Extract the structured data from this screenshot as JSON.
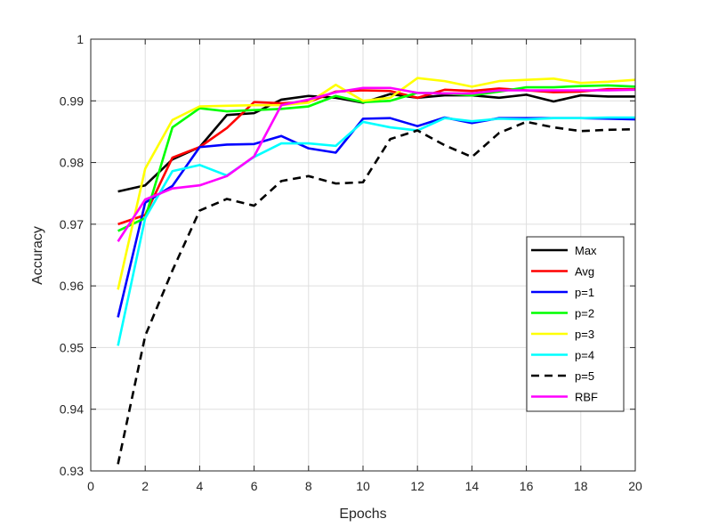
{
  "chart_data": {
    "type": "line",
    "title": "",
    "xlabel": "Epochs",
    "ylabel": "Accuracy",
    "xlim": [
      0,
      20
    ],
    "ylim": [
      0.93,
      1.0
    ],
    "xticks": [
      0,
      2,
      4,
      6,
      8,
      10,
      12,
      14,
      16,
      18,
      20
    ],
    "xtick_labels": [
      "0",
      "2",
      "4",
      "6",
      "8",
      "10",
      "12",
      "14",
      "16",
      "18",
      "20"
    ],
    "yticks": [
      0.93,
      0.94,
      0.95,
      0.96,
      0.97,
      0.98,
      0.99,
      1.0
    ],
    "ytick_labels": [
      "0.93",
      "0.94",
      "0.95",
      "0.96",
      "0.97",
      "0.98",
      "0.99",
      "1"
    ],
    "grid": true,
    "legend_position": "lower-right",
    "x": [
      1,
      2,
      3,
      4,
      5,
      6,
      7,
      8,
      9,
      10,
      11,
      12,
      13,
      14,
      15,
      16,
      17,
      18,
      19,
      20
    ],
    "series": [
      {
        "name": "Max",
        "color": "#000000",
        "dash": "solid",
        "values": [
          0.9753,
          0.9763,
          0.9805,
          0.9825,
          0.9877,
          0.988,
          0.9902,
          0.9908,
          0.9905,
          0.9897,
          0.9911,
          0.9905,
          0.9909,
          0.9909,
          0.9905,
          0.991,
          0.9899,
          0.9909,
          0.9907,
          0.9907
        ]
      },
      {
        "name": "Avg",
        "color": "#ff0000",
        "dash": "solid",
        "values": [
          0.97,
          0.9715,
          0.9808,
          0.9825,
          0.9856,
          0.9898,
          0.9896,
          0.9898,
          0.9915,
          0.9917,
          0.9916,
          0.9905,
          0.9918,
          0.9916,
          0.992,
          0.9917,
          0.9914,
          0.9915,
          0.9919,
          0.9919
        ]
      },
      {
        "name": "p=1",
        "color": "#0000ff",
        "dash": "solid",
        "values": [
          0.9549,
          0.9735,
          0.9762,
          0.9825,
          0.9829,
          0.983,
          0.9843,
          0.9823,
          0.9816,
          0.9871,
          0.9872,
          0.9859,
          0.9873,
          0.9864,
          0.9872,
          0.9872,
          0.9872,
          0.9872,
          0.9871,
          0.987
        ]
      },
      {
        "name": "p=2",
        "color": "#00ff00",
        "dash": "solid",
        "values": [
          0.9689,
          0.971,
          0.9857,
          0.9888,
          0.9883,
          0.9885,
          0.9887,
          0.9891,
          0.9908,
          0.9898,
          0.99,
          0.9913,
          0.9912,
          0.9909,
          0.9915,
          0.9922,
          0.9922,
          0.9924,
          0.9925,
          0.9923
        ]
      },
      {
        "name": "p=3",
        "color": "#ffff00",
        "dash": "solid",
        "values": [
          0.9594,
          0.979,
          0.9869,
          0.9891,
          0.9892,
          0.9893,
          0.9893,
          0.9897,
          0.9926,
          0.99,
          0.9905,
          0.9937,
          0.9932,
          0.9923,
          0.9932,
          0.9934,
          0.9936,
          0.9929,
          0.9931,
          0.9934
        ]
      },
      {
        "name": "p=4",
        "color": "#00ffff",
        "dash": "solid",
        "values": [
          0.9503,
          0.971,
          0.9786,
          0.9796,
          0.9779,
          0.9809,
          0.9831,
          0.9831,
          0.9827,
          0.9866,
          0.9857,
          0.9852,
          0.9872,
          0.9867,
          0.9871,
          0.987,
          0.9872,
          0.9872,
          0.9873,
          0.9873
        ]
      },
      {
        "name": "p=5",
        "color": "#000000",
        "dash": "dashed",
        "values": [
          0.9311,
          0.9519,
          0.9625,
          0.9722,
          0.9741,
          0.973,
          0.977,
          0.9778,
          0.9766,
          0.9768,
          0.9838,
          0.9852,
          0.9828,
          0.9809,
          0.9848,
          0.9866,
          0.9857,
          0.9851,
          0.9853,
          0.9854
        ]
      },
      {
        "name": "RBF",
        "color": "#ff00ff",
        "dash": "solid",
        "values": [
          0.9672,
          0.974,
          0.9758,
          0.9763,
          0.9778,
          0.981,
          0.9893,
          0.9902,
          0.9914,
          0.9921,
          0.9921,
          0.9913,
          0.9912,
          0.9912,
          0.9917,
          0.9917,
          0.9917,
          0.9917,
          0.9917,
          0.9918
        ]
      }
    ]
  }
}
